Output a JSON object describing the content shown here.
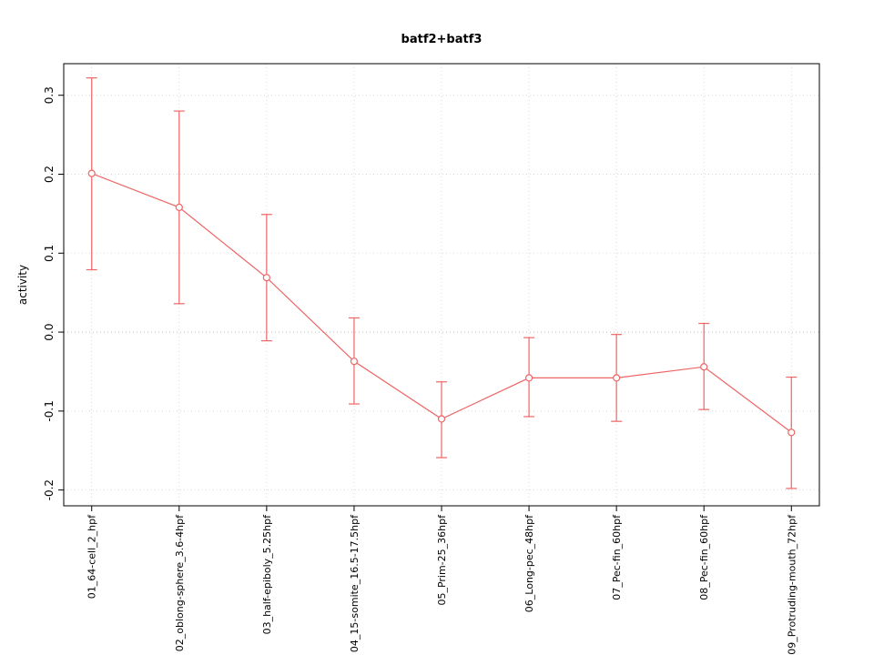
{
  "style": {
    "series_color": "#ee6565",
    "grid_color": "#d9d9d9",
    "zero_line_color": "#bdbdbd",
    "axis_color": "#000000",
    "background": "#ffffff"
  },
  "chart_data": {
    "type": "line",
    "title": "batf2+batf3",
    "xlabel": "",
    "ylabel": "activity",
    "categories": [
      "01_64-cell_2_hpf",
      "02_oblong-sphere_3.6-4hpf",
      "03_half-epiboly_5.25hpf",
      "04_15-somite_16.5-17.5hpf",
      "05_Prim-25_36hpf",
      "06_Long-pec_48hpf",
      "07_Pec-fin_60hpf",
      "08_Pec-fin_60hpf",
      "09_Protruding-mouth_72hpf"
    ],
    "series": [
      {
        "name": "activity",
        "values": [
          0.201,
          0.158,
          0.069,
          -0.037,
          -0.11,
          -0.058,
          -0.058,
          -0.044,
          -0.127
        ]
      }
    ],
    "error_low": [
      0.079,
      0.036,
      -0.011,
      -0.091,
      -0.159,
      -0.107,
      -0.113,
      -0.098,
      -0.198
    ],
    "error_high": [
      0.322,
      0.28,
      0.149,
      0.018,
      -0.063,
      -0.007,
      -0.003,
      0.011,
      -0.057
    ],
    "yticks": [
      -0.2,
      -0.1,
      0.0,
      0.1,
      0.2,
      0.3
    ],
    "ylim": [
      -0.22,
      0.34
    ],
    "grid": true,
    "legend": "none",
    "marker": "open-circle",
    "error_bars": true
  }
}
